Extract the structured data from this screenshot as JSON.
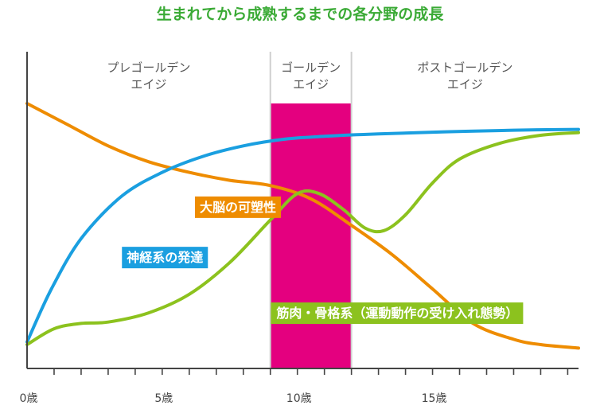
{
  "chart_data": {
    "type": "line",
    "title": "生まれてから成熟するまでの各分野の成長",
    "xlabel": "",
    "ylabel": "",
    "xlim": [
      0,
      20.4
    ],
    "ylim": [
      0,
      100
    ],
    "x_ticks": [
      {
        "value": 0,
        "label": "0歳"
      },
      {
        "value": 5,
        "label": "5歳"
      },
      {
        "value": 10,
        "label": "10歳"
      },
      {
        "value": 15,
        "label": "15歳"
      }
    ],
    "periods": [
      {
        "name": "pre-golden",
        "label_lines": [
          "プレゴールデン",
          "エイジ"
        ],
        "start": 0,
        "end": 9
      },
      {
        "name": "golden",
        "label_lines": [
          "ゴールデン",
          "エイジ"
        ],
        "start": 9,
        "end": 12
      },
      {
        "name": "post-golden",
        "label_lines": [
          "ポストゴールデン",
          "エイジ"
        ],
        "start": 12,
        "end": 20.4
      }
    ],
    "series": [
      {
        "name": "神経系の発達",
        "color": "#1a9fe0",
        "label_color": "#1a9fe0",
        "label_at": {
          "x": 5.1,
          "y": 42
        },
        "points": [
          [
            0,
            10
          ],
          [
            0.9,
            30
          ],
          [
            2,
            49
          ],
          [
            3.5,
            65
          ],
          [
            5,
            74
          ],
          [
            6.5,
            80
          ],
          [
            8,
            84
          ],
          [
            9.5,
            86.5
          ],
          [
            11,
            87.6
          ],
          [
            13,
            88.5
          ],
          [
            15.5,
            89.3
          ],
          [
            18,
            89.9
          ],
          [
            20.4,
            90.2
          ]
        ]
      },
      {
        "name": "大脳の可塑性",
        "color": "#ee8c00",
        "label_color": "#ee8c00",
        "label_at": {
          "x": 7.8,
          "y": 61
        },
        "points": [
          [
            0,
            100
          ],
          [
            1.5,
            92
          ],
          [
            3,
            84
          ],
          [
            4.5,
            78
          ],
          [
            6,
            74
          ],
          [
            7.5,
            71
          ],
          [
            9,
            69
          ],
          [
            10.5,
            64
          ],
          [
            12,
            54
          ],
          [
            13.5,
            43
          ],
          [
            15,
            30
          ],
          [
            16.5,
            17
          ],
          [
            18,
            11
          ],
          [
            19,
            9
          ],
          [
            20.4,
            7.7
          ]
        ]
      },
      {
        "name": "筋肉・骨格系（運動動作の受け入れ態勢）",
        "color": "#8cc21e",
        "label_color": "#8cc21e",
        "label_at": {
          "x": 13.7,
          "y": 21
        },
        "points": [
          [
            0,
            9
          ],
          [
            1,
            15
          ],
          [
            2,
            17
          ],
          [
            3,
            17.5
          ],
          [
            4.5,
            21
          ],
          [
            6,
            28
          ],
          [
            7.5,
            40
          ],
          [
            9,
            56
          ],
          [
            10,
            66
          ],
          [
            10.8,
            66
          ],
          [
            11.7,
            60
          ],
          [
            12.5,
            53
          ],
          [
            13.2,
            52
          ],
          [
            14,
            58
          ],
          [
            15,
            70
          ],
          [
            16,
            79
          ],
          [
            17.5,
            85
          ],
          [
            19,
            88
          ],
          [
            20.4,
            89
          ]
        ]
      }
    ],
    "grid": false,
    "legend": "inline-labels"
  }
}
